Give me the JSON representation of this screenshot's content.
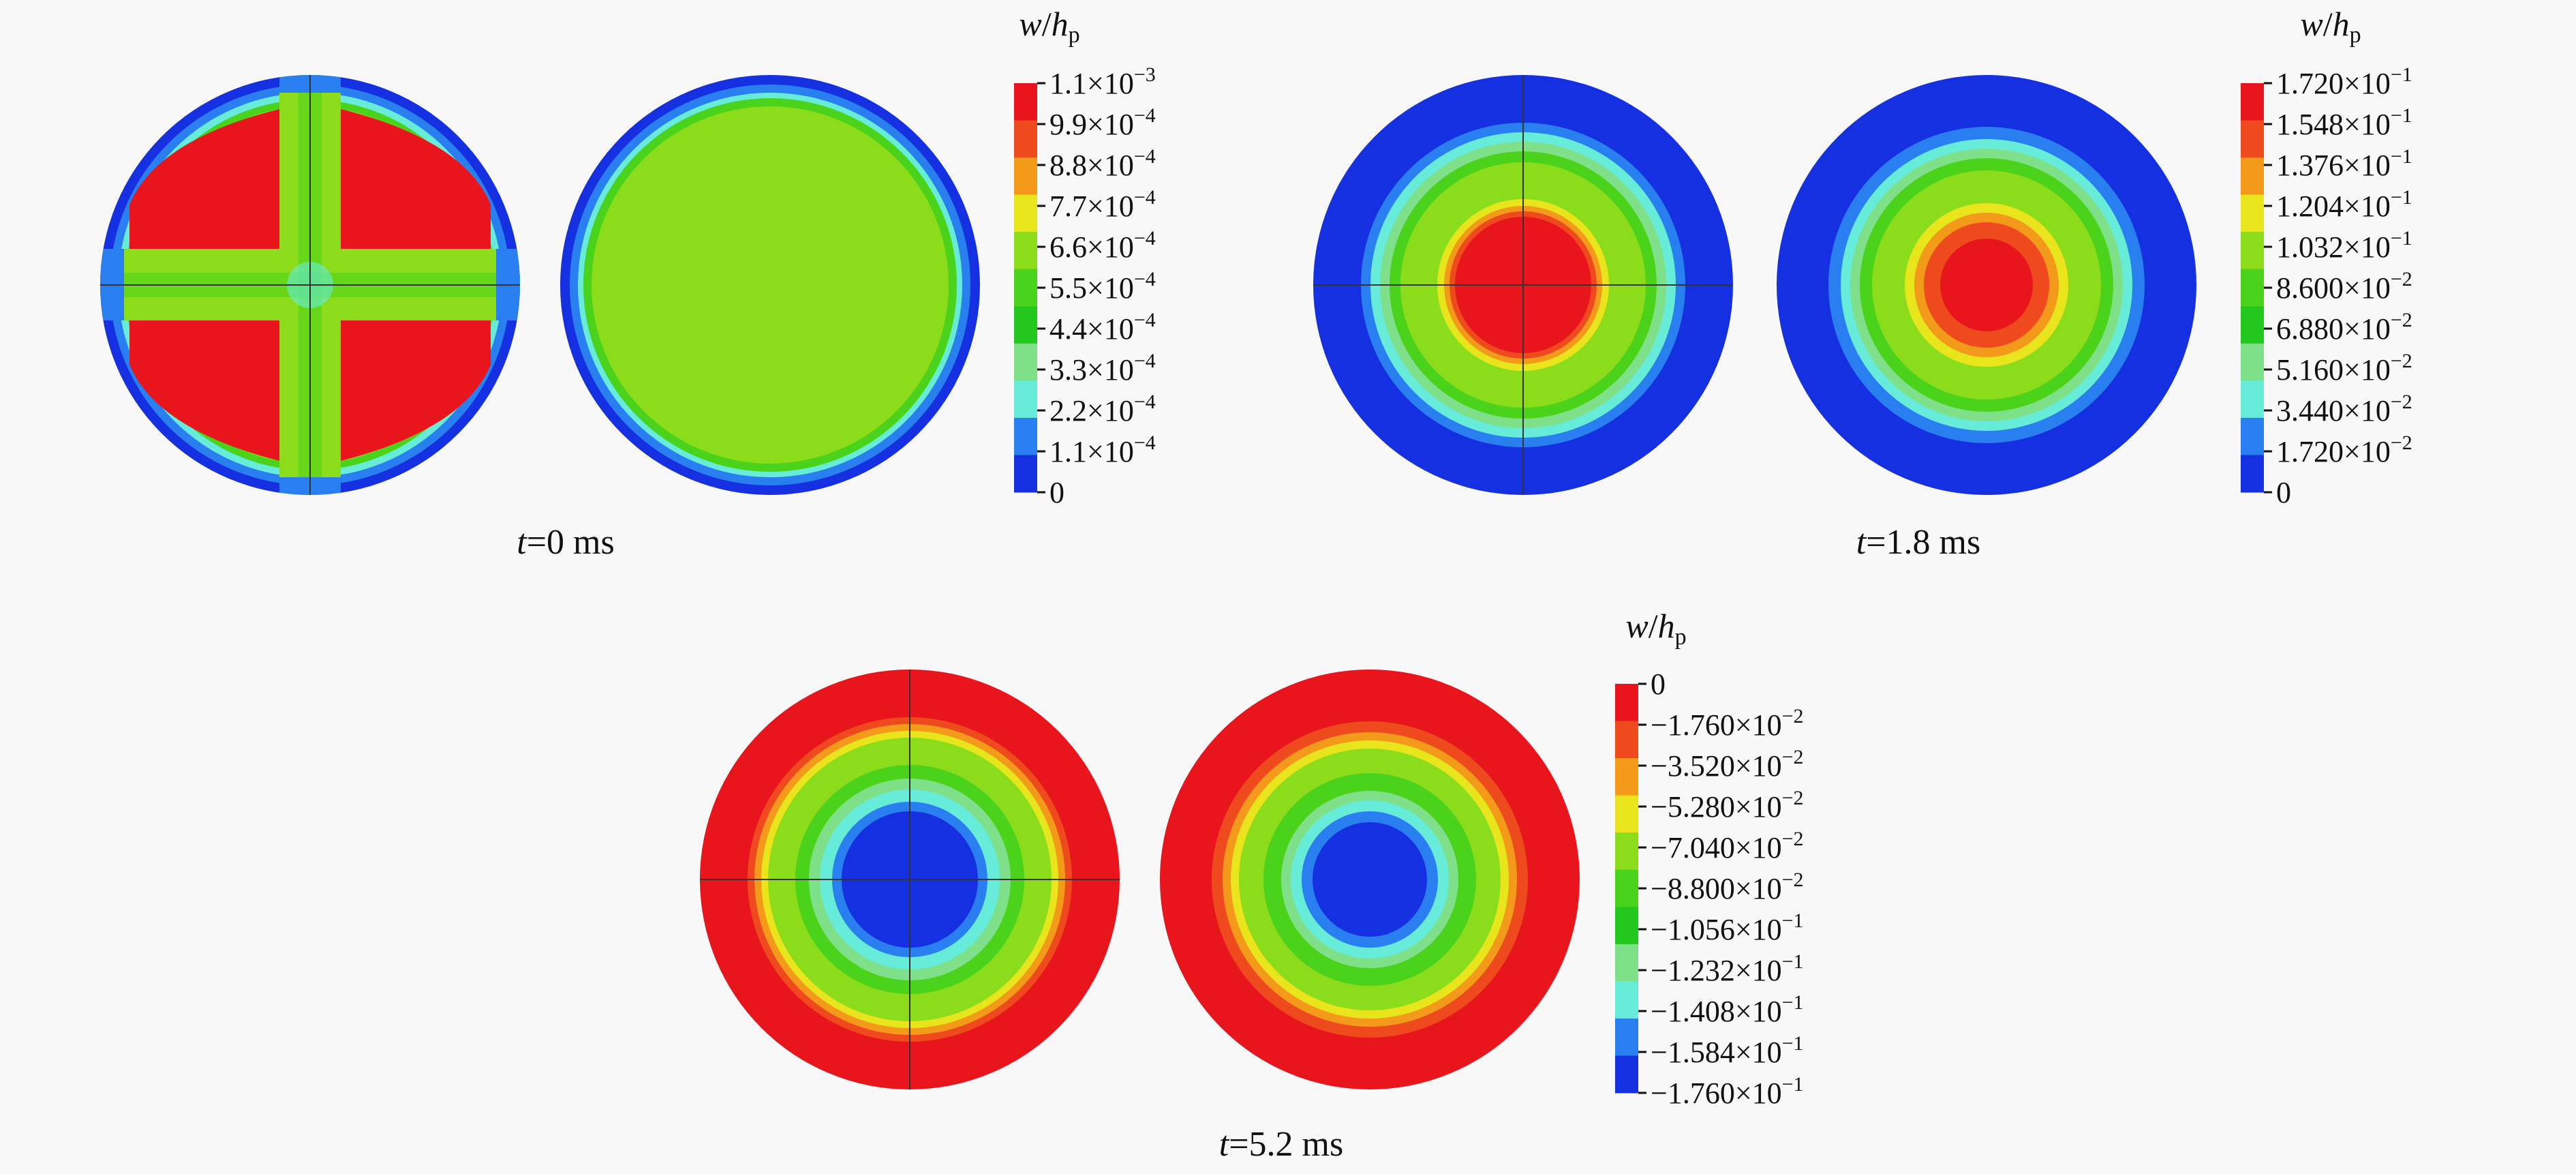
{
  "panels": [
    {
      "id": "t0",
      "time_label": {
        "var": "t",
        "rest": "=0 ms"
      },
      "colorbar": {
        "title": {
          "num": "w",
          "slash": "/",
          "den": "h",
          "sub": "p"
        },
        "colors": [
          "#e8161c",
          "#ee4a1e",
          "#f39a1a",
          "#e9e51c",
          "#8bdc1a",
          "#4bd21a",
          "#22c81e",
          "#7fe08a",
          "#66ecd8",
          "#2a7ff0",
          "#1530e0"
        ],
        "ticks": [
          {
            "m": "1.1",
            "e": "−3"
          },
          {
            "m": "9.9",
            "e": "−4"
          },
          {
            "m": "8.8",
            "e": "−4"
          },
          {
            "m": "7.7",
            "e": "−4"
          },
          {
            "m": "6.6",
            "e": "−4"
          },
          {
            "m": "5.5",
            "e": "−4"
          },
          {
            "m": "4.4",
            "e": "−4"
          },
          {
            "m": "3.3",
            "e": "−4"
          },
          {
            "m": "2.2",
            "e": "−4"
          },
          {
            "m": "1.1",
            "e": "−4"
          },
          {
            "m": "0",
            "e": ""
          }
        ]
      }
    },
    {
      "id": "t18",
      "time_label": {
        "var": "t",
        "rest": "=1.8 ms"
      },
      "colorbar": {
        "title": {
          "num": "w",
          "slash": "/",
          "den": "h",
          "sub": "p"
        },
        "colors": [
          "#e8161c",
          "#ee4a1e",
          "#f39a1a",
          "#e9e51c",
          "#8bdc1a",
          "#4bd21a",
          "#22c81e",
          "#7fe08a",
          "#66ecd8",
          "#2a7ff0",
          "#1530e0"
        ],
        "ticks": [
          {
            "m": "1.720",
            "e": "−1"
          },
          {
            "m": "1.548",
            "e": "−1"
          },
          {
            "m": "1.376",
            "e": "−1"
          },
          {
            "m": "1.204",
            "e": "−1"
          },
          {
            "m": "1.032",
            "e": "−1"
          },
          {
            "m": "8.600",
            "e": "−2"
          },
          {
            "m": "6.880",
            "e": "−2"
          },
          {
            "m": "5.160",
            "e": "−2"
          },
          {
            "m": "3.440",
            "e": "−2"
          },
          {
            "m": "1.720",
            "e": "−2"
          },
          {
            "m": "0",
            "e": ""
          }
        ]
      }
    },
    {
      "id": "t52",
      "time_label": {
        "var": "t",
        "rest": "=5.2 ms"
      },
      "colorbar": {
        "title": {
          "num": "w",
          "slash": "/",
          "den": "h",
          "sub": "p"
        },
        "colors": [
          "#e8161c",
          "#ee4a1e",
          "#f39a1a",
          "#e9e51c",
          "#8bdc1a",
          "#4bd21a",
          "#22c81e",
          "#7fe08a",
          "#66ecd8",
          "#2a7ff0",
          "#1530e0"
        ],
        "ticks": [
          {
            "m": "0",
            "e": ""
          },
          {
            "m": "−1.760",
            "e": "−2"
          },
          {
            "m": "−3.520",
            "e": "−2"
          },
          {
            "m": "−5.280",
            "e": "−2"
          },
          {
            "m": "−7.040",
            "e": "−2"
          },
          {
            "m": "−8.800",
            "e": "−2"
          },
          {
            "m": "−1.056",
            "e": "−1"
          },
          {
            "m": "−1.232",
            "e": "−1"
          },
          {
            "m": "−1.408",
            "e": "−1"
          },
          {
            "m": "−1.584",
            "e": "−1"
          },
          {
            "m": "−1.760",
            "e": "−1"
          }
        ]
      }
    }
  ]
}
